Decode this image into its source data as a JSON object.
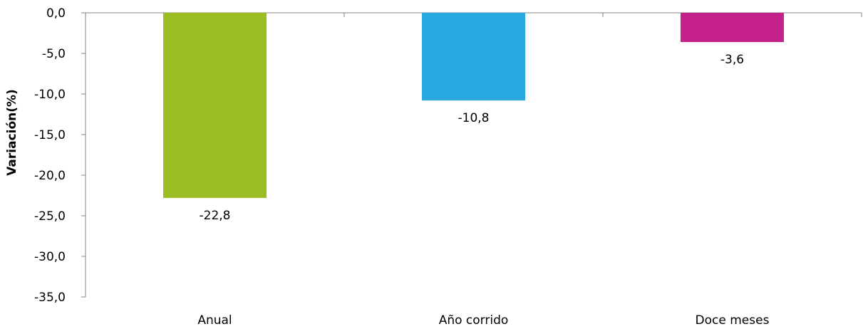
{
  "chart_data": {
    "type": "bar",
    "title": "",
    "xlabel": "",
    "ylabel": "Variación(%)",
    "ylim": [
      -35,
      0
    ],
    "yticks": [
      "0,0",
      "-5,0",
      "-10,0",
      "-15,0",
      "-20,0",
      "-25,0",
      "-30,0",
      "-35,0"
    ],
    "ytick_values": [
      0,
      -5,
      -10,
      -15,
      -20,
      -25,
      -30,
      -35
    ],
    "categories": [
      "Anual",
      "Año corrido",
      "Doce meses"
    ],
    "values": [
      -22.8,
      -10.8,
      -3.6
    ],
    "data_labels": [
      "-22,8",
      "-10,8",
      "-3,6"
    ],
    "colors": [
      "#9bbd22",
      "#2aa9e0",
      "#c4218a"
    ],
    "grid": false,
    "legend": "none"
  }
}
